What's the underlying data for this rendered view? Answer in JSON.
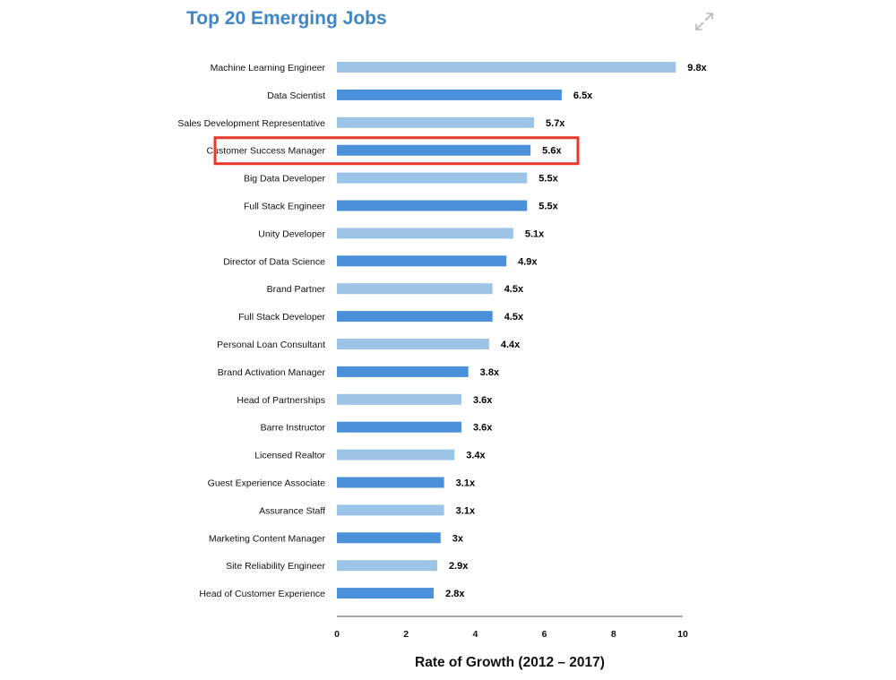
{
  "header": {
    "title": "Top 20 Emerging Jobs",
    "expand_icon": "expand-arrows-icon"
  },
  "colors": {
    "title": "#3f86c6",
    "bar_dark": "#4a90d9",
    "bar_light": "#9cc4e6",
    "highlight_box": "#e8392a",
    "axis": "#555555"
  },
  "chart_data": {
    "type": "bar",
    "orientation": "horizontal",
    "title": "Top 20 Emerging Jobs",
    "xlabel": "Rate of Growth (2012 – 2017)",
    "ylabel": "",
    "xlim": [
      0,
      10
    ],
    "xticks": [
      0,
      2,
      4,
      6,
      8,
      10
    ],
    "grid": false,
    "categories": [
      "Machine Learning Engineer",
      "Data Scientist",
      "Sales Development Representative",
      "Customer Success Manager",
      "Big Data Developer",
      "Full Stack Engineer",
      "Unity Developer",
      "Director of Data Science",
      "Brand Partner",
      "Full Stack Developer",
      "Personal Loan Consultant",
      "Brand Activation Manager",
      "Head of Partnerships",
      "Barre Instructor",
      "Licensed Realtor",
      "Guest Experience Associate",
      "Assurance Staff",
      "Marketing Content Manager",
      "Site Reliability Engineer",
      "Head of Customer Experience"
    ],
    "values": [
      9.8,
      6.5,
      5.7,
      5.6,
      5.5,
      5.5,
      5.1,
      4.9,
      4.5,
      4.5,
      4.4,
      3.8,
      3.6,
      3.6,
      3.4,
      3.1,
      3.1,
      3,
      2.9,
      2.8
    ],
    "value_labels": [
      "9.8x",
      "6.5x",
      "5.7x",
      "5.6x",
      "5.5x",
      "5.5x",
      "5.1x",
      "4.9x",
      "4.5x",
      "4.5x",
      "4.4x",
      "3.8x",
      "3.6x",
      "3.6x",
      "3.4x",
      "3.1x",
      "3.1x",
      "3x",
      "2.9x",
      "2.8x"
    ],
    "bar_shades": [
      "light",
      "dark",
      "light",
      "dark",
      "light",
      "dark",
      "light",
      "dark",
      "light",
      "dark",
      "light",
      "dark",
      "light",
      "dark",
      "light",
      "dark",
      "light",
      "dark",
      "light",
      "dark"
    ],
    "highlighted_category": "Customer Success Manager"
  }
}
